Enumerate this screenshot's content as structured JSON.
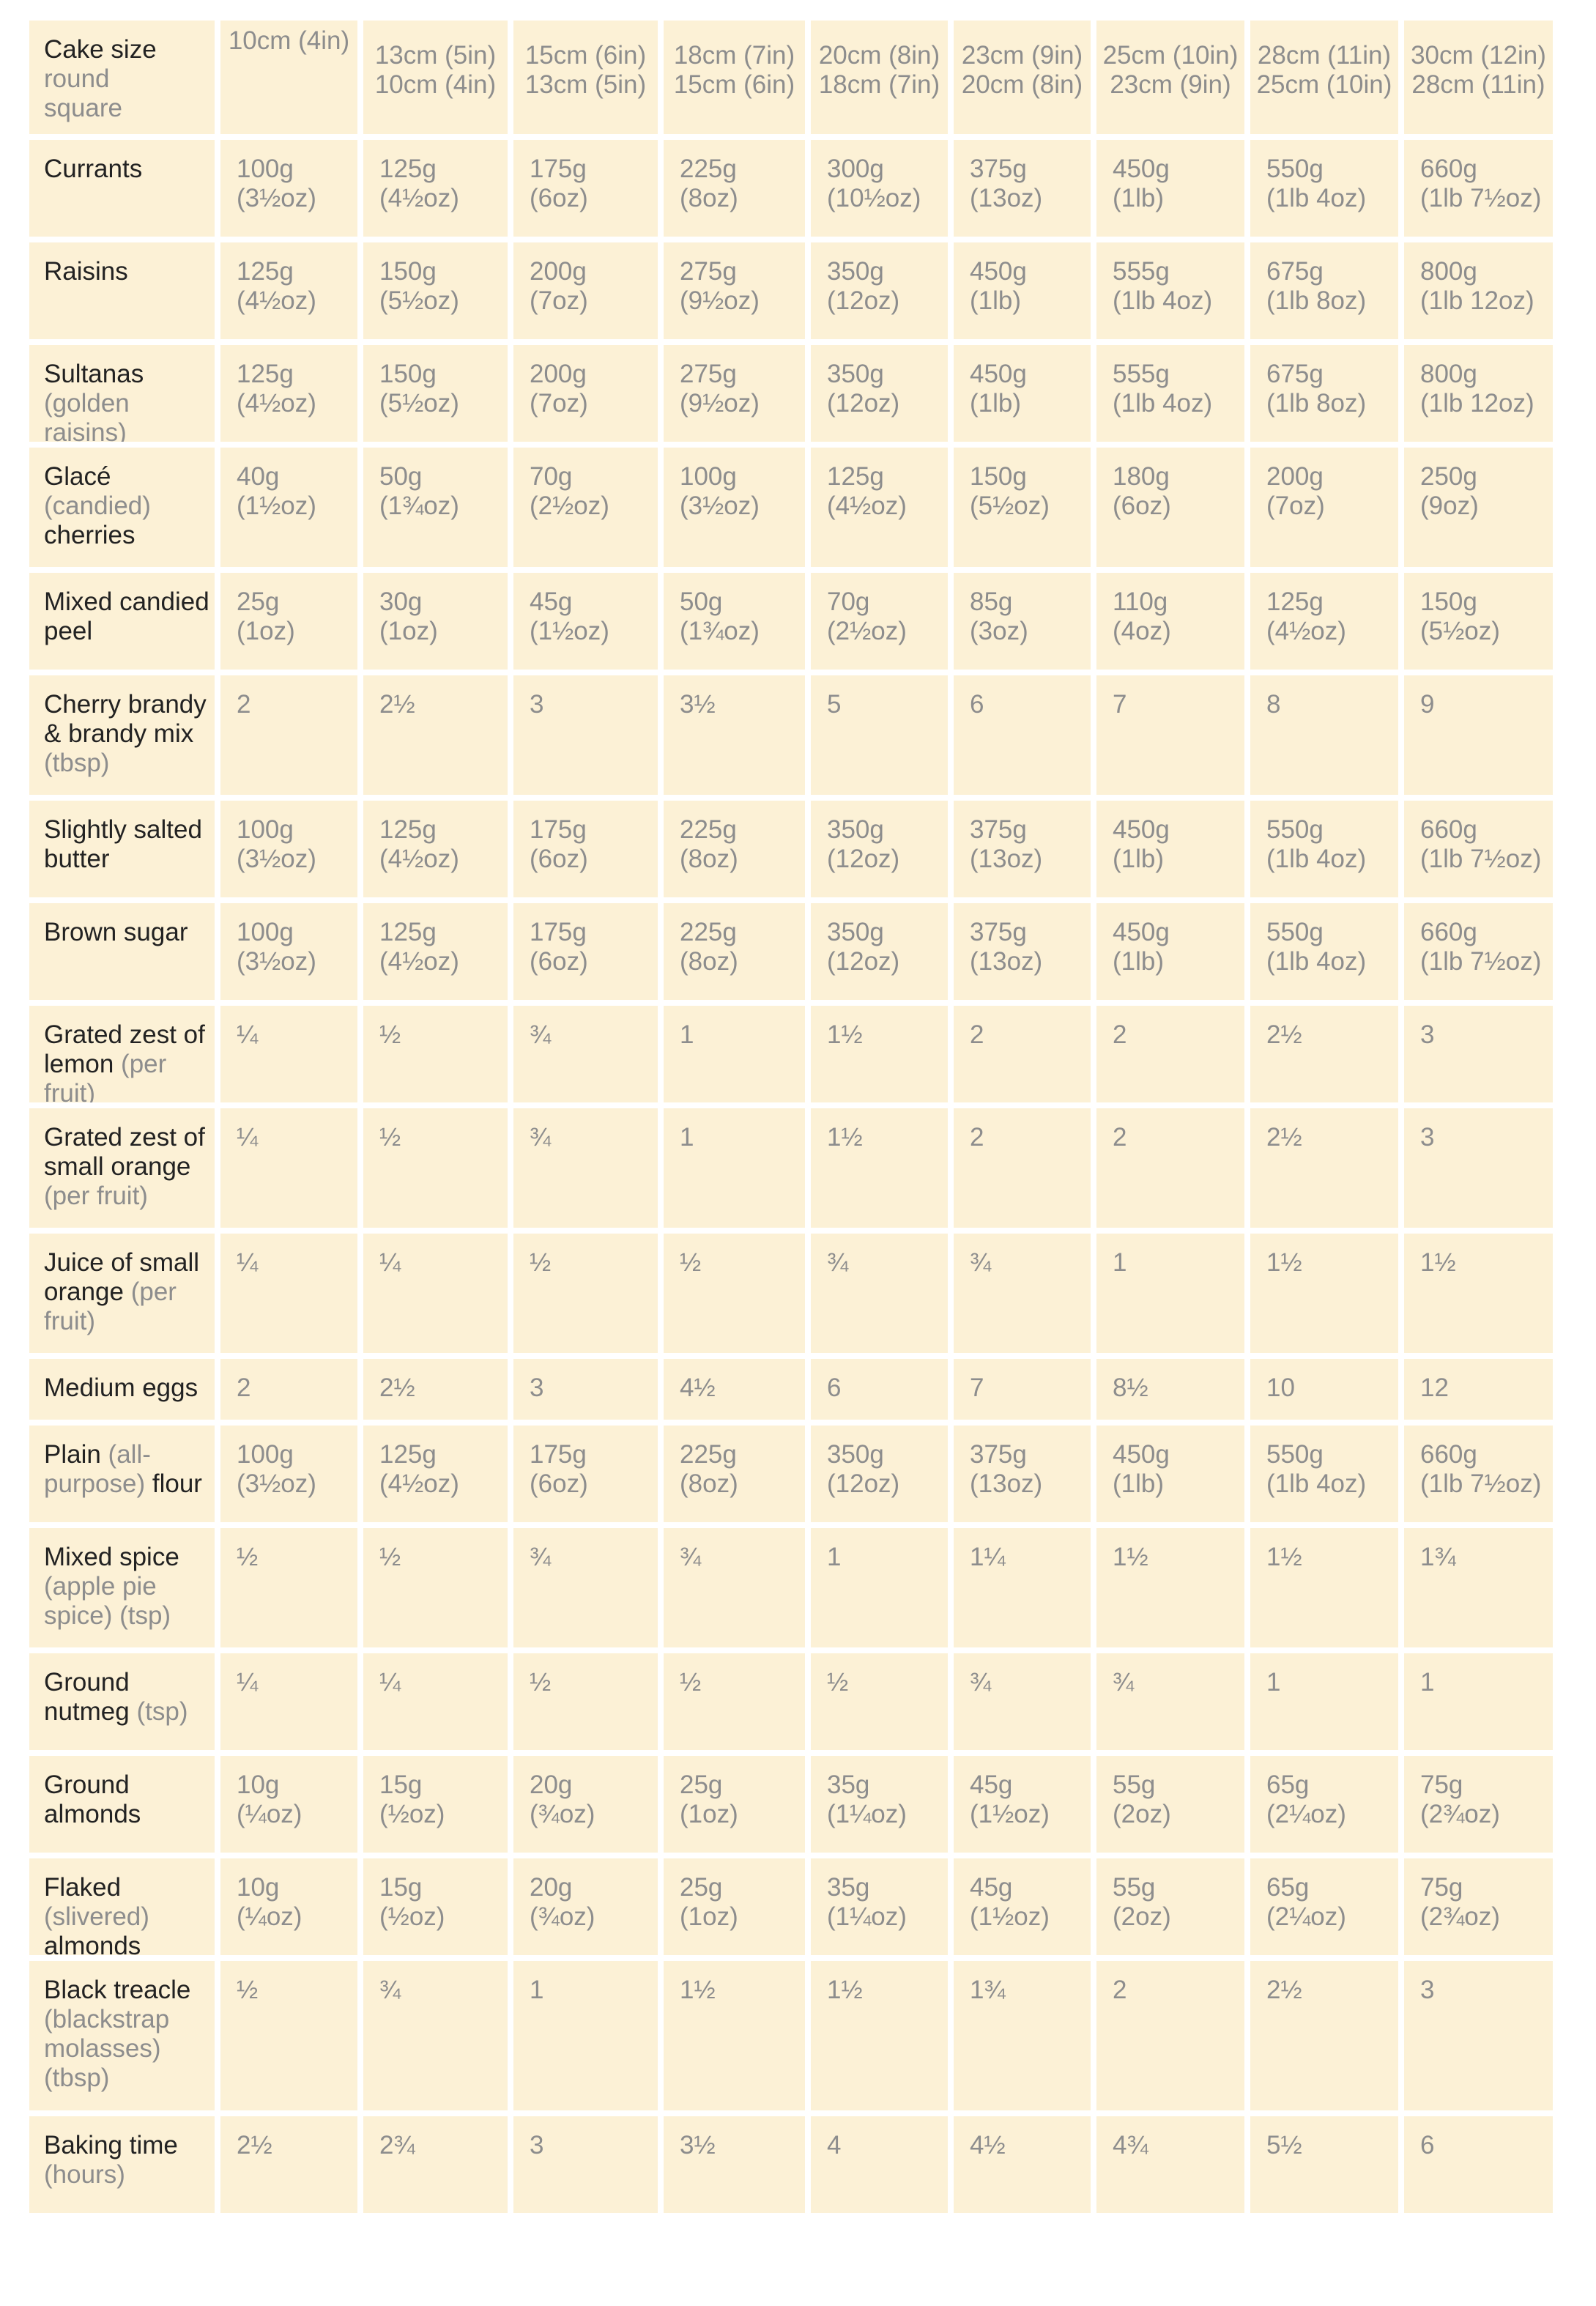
{
  "header": {
    "title": "Cake size",
    "round_label": "round",
    "square_label": "square",
    "columns": [
      {
        "round": "10cm (4in)",
        "square": ""
      },
      {
        "round": "13cm (5in)",
        "square": "10cm (4in)"
      },
      {
        "round": "15cm (6in)",
        "square": "13cm (5in)"
      },
      {
        "round": "18cm (7in)",
        "square": "15cm (6in)"
      },
      {
        "round": "20cm (8in)",
        "square": "18cm (7in)"
      },
      {
        "round": "23cm (9in)",
        "square": "20cm (8in)"
      },
      {
        "round": "25cm (10in)",
        "square": "23cm (9in)"
      },
      {
        "round": "28cm (11in)",
        "square": "25cm (10in)"
      },
      {
        "round": "30cm (12in)",
        "square": "28cm (11in)"
      }
    ]
  },
  "rows": [
    {
      "label": [
        {
          "t": "Currants",
          "b": true
        }
      ],
      "values": [
        [
          "100g",
          "(3½oz)"
        ],
        [
          "125g",
          "(4½oz)"
        ],
        [
          "175g",
          "(6oz)"
        ],
        [
          "225g",
          "(8oz)"
        ],
        [
          "300g",
          "(10½oz)"
        ],
        [
          "375g",
          "(13oz)"
        ],
        [
          "450g",
          "(1lb)"
        ],
        [
          "550g",
          "(1lb 4oz)"
        ],
        [
          "660g",
          "(1lb 7½oz)"
        ]
      ]
    },
    {
      "label": [
        {
          "t": "Raisins",
          "b": true
        }
      ],
      "values": [
        [
          "125g",
          "(4½oz)"
        ],
        [
          "150g",
          "(5½oz)"
        ],
        [
          "200g",
          "(7oz)"
        ],
        [
          "275g",
          "(9½oz)"
        ],
        [
          "350g",
          "(12oz)"
        ],
        [
          "450g",
          "(1lb)"
        ],
        [
          "555g",
          "(1lb 4oz)"
        ],
        [
          "675g",
          "(1lb 8oz)"
        ],
        [
          "800g",
          "(1lb 12oz)"
        ]
      ]
    },
    {
      "label": [
        {
          "t": "Sultanas",
          "b": true
        },
        {
          "br": true
        },
        {
          "t": "(golden raisins)",
          "b": false
        }
      ],
      "values": [
        [
          "125g",
          "(4½oz)"
        ],
        [
          "150g",
          "(5½oz)"
        ],
        [
          "200g",
          "(7oz)"
        ],
        [
          "275g",
          "(9½oz)"
        ],
        [
          "350g",
          "(12oz)"
        ],
        [
          "450g",
          "(1lb)"
        ],
        [
          "555g",
          "(1lb 4oz)"
        ],
        [
          "675g",
          "(1lb 8oz)"
        ],
        [
          "800g",
          "(1lb 12oz)"
        ]
      ]
    },
    {
      "label": [
        {
          "t": "Glacé",
          "b": true
        },
        {
          "br": true
        },
        {
          "t": "(candied)",
          "b": false
        },
        {
          "br": true
        },
        {
          "t": "cherries",
          "b": true
        }
      ],
      "values": [
        [
          "40g",
          "(1½oz)"
        ],
        [
          "50g",
          "(1¾oz)"
        ],
        [
          "70g",
          "(2½oz)"
        ],
        [
          "100g",
          "(3½oz)"
        ],
        [
          "125g",
          "(4½oz)"
        ],
        [
          "150g",
          "(5½oz)"
        ],
        [
          "180g",
          "(6oz)"
        ],
        [
          "200g",
          "(7oz)"
        ],
        [
          "250g",
          "(9oz)"
        ]
      ]
    },
    {
      "label": [
        {
          "t": "Mixed candied",
          "b": true
        },
        {
          "br": true
        },
        {
          "t": "peel",
          "b": true
        }
      ],
      "values": [
        [
          "25g",
          "(1oz)"
        ],
        [
          "30g",
          "(1oz)"
        ],
        [
          "45g",
          "(1½oz)"
        ],
        [
          "50g",
          "(1¾oz)"
        ],
        [
          "70g",
          "(2½oz)"
        ],
        [
          "85g",
          "(3oz)"
        ],
        [
          "110g",
          "(4oz)"
        ],
        [
          "125g",
          "(4½oz)"
        ],
        [
          "150g",
          "(5½oz)"
        ]
      ]
    },
    {
      "label": [
        {
          "t": "Cherry brandy",
          "b": true
        },
        {
          "br": true
        },
        {
          "t": "& brandy mix",
          "b": true
        },
        {
          "br": true
        },
        {
          "t": "(tbsp)",
          "b": false
        }
      ],
      "values": [
        [
          "2"
        ],
        [
          "2½"
        ],
        [
          "3"
        ],
        [
          "3½"
        ],
        [
          "5"
        ],
        [
          "6"
        ],
        [
          "7"
        ],
        [
          "8"
        ],
        [
          "9"
        ]
      ]
    },
    {
      "label": [
        {
          "t": "Slightly salted",
          "b": true
        },
        {
          "br": true
        },
        {
          "t": "butter",
          "b": true
        }
      ],
      "values": [
        [
          "100g",
          "(3½oz)"
        ],
        [
          "125g",
          "(4½oz)"
        ],
        [
          "175g",
          "(6oz)"
        ],
        [
          "225g",
          "(8oz)"
        ],
        [
          "350g",
          "(12oz)"
        ],
        [
          "375g",
          "(13oz)"
        ],
        [
          "450g",
          "(1lb)"
        ],
        [
          "550g",
          "(1lb 4oz)"
        ],
        [
          "660g",
          "(1lb 7½oz)"
        ]
      ]
    },
    {
      "label": [
        {
          "t": "Brown sugar",
          "b": true
        }
      ],
      "values": [
        [
          "100g",
          "(3½oz)"
        ],
        [
          "125g",
          "(4½oz)"
        ],
        [
          "175g",
          "(6oz)"
        ],
        [
          "225g",
          "(8oz)"
        ],
        [
          "350g",
          "(12oz)"
        ],
        [
          "375g",
          "(13oz)"
        ],
        [
          "450g",
          "(1lb)"
        ],
        [
          "550g",
          "(1lb 4oz)"
        ],
        [
          "660g",
          "(1lb 7½oz)"
        ]
      ]
    },
    {
      "label": [
        {
          "t": "Grated zest of",
          "b": true
        },
        {
          "br": true
        },
        {
          "t": "lemon",
          "b": true
        },
        {
          "t": " (per fruit)",
          "b": false
        }
      ],
      "values": [
        [
          "¼"
        ],
        [
          "½"
        ],
        [
          "¾"
        ],
        [
          "1"
        ],
        [
          "1½"
        ],
        [
          "2"
        ],
        [
          "2"
        ],
        [
          "2½"
        ],
        [
          "3"
        ]
      ]
    },
    {
      "label": [
        {
          "t": "Grated zest of",
          "b": true
        },
        {
          "br": true
        },
        {
          "t": "small orange",
          "b": true
        },
        {
          "br": true
        },
        {
          "t": "(per fruit)",
          "b": false
        }
      ],
      "values": [
        [
          "¼"
        ],
        [
          "½"
        ],
        [
          "¾"
        ],
        [
          "1"
        ],
        [
          "1½"
        ],
        [
          "2"
        ],
        [
          "2"
        ],
        [
          "2½"
        ],
        [
          "3"
        ]
      ]
    },
    {
      "label": [
        {
          "t": "Juice of small",
          "b": true
        },
        {
          "br": true
        },
        {
          "t": "orange",
          "b": true
        },
        {
          "t": " (per",
          "b": false
        },
        {
          "br": true
        },
        {
          "t": "fruit)",
          "b": false
        }
      ],
      "values": [
        [
          "¼"
        ],
        [
          "¼"
        ],
        [
          "½"
        ],
        [
          "½"
        ],
        [
          "¾"
        ],
        [
          "¾"
        ],
        [
          "1"
        ],
        [
          "1½"
        ],
        [
          "1½"
        ]
      ]
    },
    {
      "label": [
        {
          "t": "Medium eggs",
          "b": true
        }
      ],
      "values": [
        [
          "2"
        ],
        [
          "2½"
        ],
        [
          "3"
        ],
        [
          "4½"
        ],
        [
          "6"
        ],
        [
          "7"
        ],
        [
          "8½"
        ],
        [
          "10"
        ],
        [
          "12"
        ]
      ]
    },
    {
      "label": [
        {
          "t": "Plain",
          "b": true
        },
        {
          "t": " (all-",
          "b": false
        },
        {
          "br": true
        },
        {
          "t": "purpose)",
          "b": false
        },
        {
          "t": " flour",
          "b": true
        }
      ],
      "values": [
        [
          "100g",
          "(3½oz)"
        ],
        [
          "125g",
          "(4½oz)"
        ],
        [
          "175g",
          "(6oz)"
        ],
        [
          "225g",
          "(8oz)"
        ],
        [
          "350g",
          "(12oz)"
        ],
        [
          "375g",
          "(13oz)"
        ],
        [
          "450g",
          "(1lb)"
        ],
        [
          "550g",
          "(1lb 4oz)"
        ],
        [
          "660g",
          "(1lb 7½oz)"
        ]
      ]
    },
    {
      "label": [
        {
          "t": "Mixed spice",
          "b": true
        },
        {
          "br": true
        },
        {
          "t": "(apple pie",
          "b": false
        },
        {
          "br": true
        },
        {
          "t": "spice) (tsp)",
          "b": false
        }
      ],
      "values": [
        [
          "½"
        ],
        [
          "½"
        ],
        [
          "¾"
        ],
        [
          "¾"
        ],
        [
          "1"
        ],
        [
          "1¼"
        ],
        [
          "1½"
        ],
        [
          "1½"
        ],
        [
          "1¾"
        ]
      ]
    },
    {
      "label": [
        {
          "t": "Ground",
          "b": true
        },
        {
          "br": true
        },
        {
          "t": "nutmeg",
          "b": true
        },
        {
          "t": " (tsp)",
          "b": false
        }
      ],
      "values": [
        [
          "¼"
        ],
        [
          "¼"
        ],
        [
          "½"
        ],
        [
          "½"
        ],
        [
          "½"
        ],
        [
          "¾"
        ],
        [
          "¾"
        ],
        [
          "1"
        ],
        [
          "1"
        ]
      ]
    },
    {
      "label": [
        {
          "t": "Ground",
          "b": true
        },
        {
          "br": true
        },
        {
          "t": "almonds",
          "b": true
        }
      ],
      "values": [
        [
          "10g",
          "(¼oz)"
        ],
        [
          "15g",
          "(½oz)"
        ],
        [
          "20g",
          "(¾oz)"
        ],
        [
          "25g",
          "(1oz)"
        ],
        [
          "35g",
          "(1¼oz)"
        ],
        [
          "45g",
          "(1½oz)"
        ],
        [
          "55g",
          "(2oz)"
        ],
        [
          "65g",
          "(2¼oz)"
        ],
        [
          "75g",
          "(2¾oz)"
        ]
      ]
    },
    {
      "label": [
        {
          "t": "Flaked",
          "b": true
        },
        {
          "t": " (slivered)",
          "b": false
        },
        {
          "br": true
        },
        {
          "t": "almonds",
          "b": true
        }
      ],
      "values": [
        [
          "10g",
          "(¼oz)"
        ],
        [
          "15g",
          "(½oz)"
        ],
        [
          "20g",
          "(¾oz)"
        ],
        [
          "25g",
          "(1oz)"
        ],
        [
          "35g",
          "(1¼oz)"
        ],
        [
          "45g",
          "(1½oz)"
        ],
        [
          "55g",
          "(2oz)"
        ],
        [
          "65g",
          "(2¼oz)"
        ],
        [
          "75g",
          "(2¾oz)"
        ]
      ]
    },
    {
      "label": [
        {
          "t": "Black treacle",
          "b": true
        },
        {
          "br": true
        },
        {
          "t": "(blackstrap",
          "b": false
        },
        {
          "br": true
        },
        {
          "t": "molasses)",
          "b": false
        },
        {
          "br": true
        },
        {
          "t": "(tbsp)",
          "b": false
        }
      ],
      "values": [
        [
          "½"
        ],
        [
          "¾"
        ],
        [
          "1"
        ],
        [
          "1½"
        ],
        [
          "1½"
        ],
        [
          "1¾"
        ],
        [
          "2"
        ],
        [
          "2½"
        ],
        [
          "3"
        ]
      ]
    },
    {
      "label": [
        {
          "t": "Baking time",
          "b": true
        },
        {
          "br": true
        },
        {
          "t": "(hours)",
          "b": false
        }
      ],
      "values": [
        [
          "2½"
        ],
        [
          "2¾"
        ],
        [
          "3"
        ],
        [
          "3½"
        ],
        [
          "4"
        ],
        [
          "4½"
        ],
        [
          "4¾"
        ],
        [
          "5½"
        ],
        [
          "6"
        ]
      ]
    }
  ]
}
